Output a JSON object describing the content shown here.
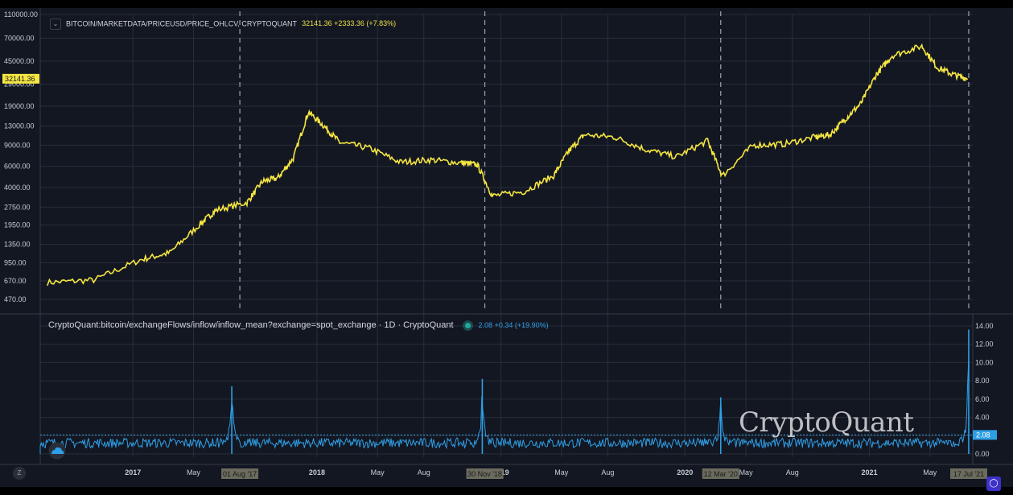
{
  "legend_top": {
    "symbol": "BITCOIN/MARKETDATA/PRICEUSD/PRICE_OHLCV, CRYPTOQUANT",
    "value": "32141.36 +2333.36 (+7.83%)"
  },
  "legend_bottom": {
    "symbol": "CryptoQuant:bitcoin/exchangeFlows/inflow/inflow_mean?exchange=spot_exchange · 1D · CryptoQuant",
    "value": "2.08 +0.34 (+19.90%)"
  },
  "watermark": "CryptoQuant",
  "z_button": "Z",
  "colors": {
    "price": "#f5e642",
    "flow": "#2e9fe6",
    "background": "#131722",
    "grid": "#2a2e39"
  },
  "chart_data": [
    {
      "type": "line",
      "name": "price",
      "scale": "log",
      "y_ticks": [
        110000,
        70000,
        45000,
        29000,
        19000,
        13000,
        9000,
        6000,
        4000,
        2750,
        1950,
        1350,
        950,
        670,
        470
      ],
      "y_tick_labels": [
        "110000.00",
        "70000.00",
        "45000.00",
        "29000.00",
        "19000.00",
        "13000.00",
        "9000.00",
        "6000.00",
        "4000.00",
        "2750.00",
        "1950.00",
        "1350.00",
        "950.00",
        "670.00",
        "470.00"
      ],
      "last_value_label": "32141.36",
      "last_value": 32141.36,
      "x": [
        "2016-07",
        "2016-10",
        "2017-01",
        "2017-03",
        "2017-05",
        "2017-06",
        "2017-08",
        "2017-09",
        "2017-10",
        "2017-11",
        "2017-12",
        "2018-01",
        "2018-02",
        "2018-04",
        "2018-06",
        "2018-08",
        "2018-10",
        "2018-11",
        "2018-12",
        "2019-02",
        "2019-04",
        "2019-05",
        "2019-06",
        "2019-08",
        "2019-10",
        "2019-12",
        "2020-02",
        "2020-03",
        "2020-05",
        "2020-07",
        "2020-09",
        "2020-10",
        "2020-11",
        "2020-12",
        "2021-01",
        "2021-02",
        "2021-04",
        "2021-05",
        "2021-06",
        "2021-07"
      ],
      "values": [
        650,
        680,
        1000,
        1150,
        2000,
        2600,
        3000,
        4500,
        4800,
        7000,
        17000,
        13000,
        9500,
        8500,
        6500,
        6800,
        6400,
        6200,
        3400,
        3700,
        5000,
        8000,
        11000,
        10500,
        8300,
        7200,
        9800,
        5000,
        9000,
        9200,
        10500,
        11000,
        15000,
        20000,
        35000,
        50000,
        60000,
        40000,
        35000,
        32141
      ]
    },
    {
      "type": "area",
      "name": "inflow_mean",
      "y_ticks": [
        14,
        12,
        10,
        8,
        6,
        4,
        2,
        0
      ],
      "y_tick_labels": [
        "14.00",
        "12.00",
        "10.00",
        "8.00",
        "6.00",
        "4.00",
        "2.00",
        "0.00"
      ],
      "last_value_label": "2.08",
      "last_value": 2.08,
      "spikes": [
        {
          "x": "2017-07-16",
          "value": 7.4
        },
        {
          "x": "2018-11-25",
          "value": 8.2
        },
        {
          "x": "2020-03-12",
          "value": 6.2
        },
        {
          "x": "2021-07-17",
          "value": 13.6
        }
      ],
      "baseline_mean": 1.2
    }
  ],
  "x_axis": {
    "ticks": [
      {
        "label": "2017",
        "date": "2017-01-01",
        "bold": true
      },
      {
        "label": "May",
        "date": "2017-05-01",
        "bold": false
      },
      {
        "label": "2018",
        "date": "2018-01-01",
        "bold": true
      },
      {
        "label": "May",
        "date": "2018-05-01",
        "bold": false
      },
      {
        "label": "Aug",
        "date": "2018-08-01",
        "bold": false
      },
      {
        "label": "2019",
        "date": "2019-01-01",
        "bold": true
      },
      {
        "label": "May",
        "date": "2019-05-01",
        "bold": false
      },
      {
        "label": "Aug",
        "date": "2019-08-01",
        "bold": false
      },
      {
        "label": "2020",
        "date": "2020-01-01",
        "bold": true
      },
      {
        "label": "May",
        "date": "2020-05-01",
        "bold": false
      },
      {
        "label": "Aug",
        "date": "2020-08-01",
        "bold": false
      },
      {
        "label": "2021",
        "date": "2021-01-01",
        "bold": true
      },
      {
        "label": "May",
        "date": "2021-05-01",
        "bold": false
      }
    ],
    "markers": [
      {
        "label": "01 Aug '17",
        "date": "2017-08-01"
      },
      {
        "label": "30 Nov '18",
        "date": "2018-11-30"
      },
      {
        "label": "12 Mar '20",
        "date": "2020-03-12"
      },
      {
        "label": "17 Jul '21",
        "date": "2021-07-17"
      }
    ]
  }
}
